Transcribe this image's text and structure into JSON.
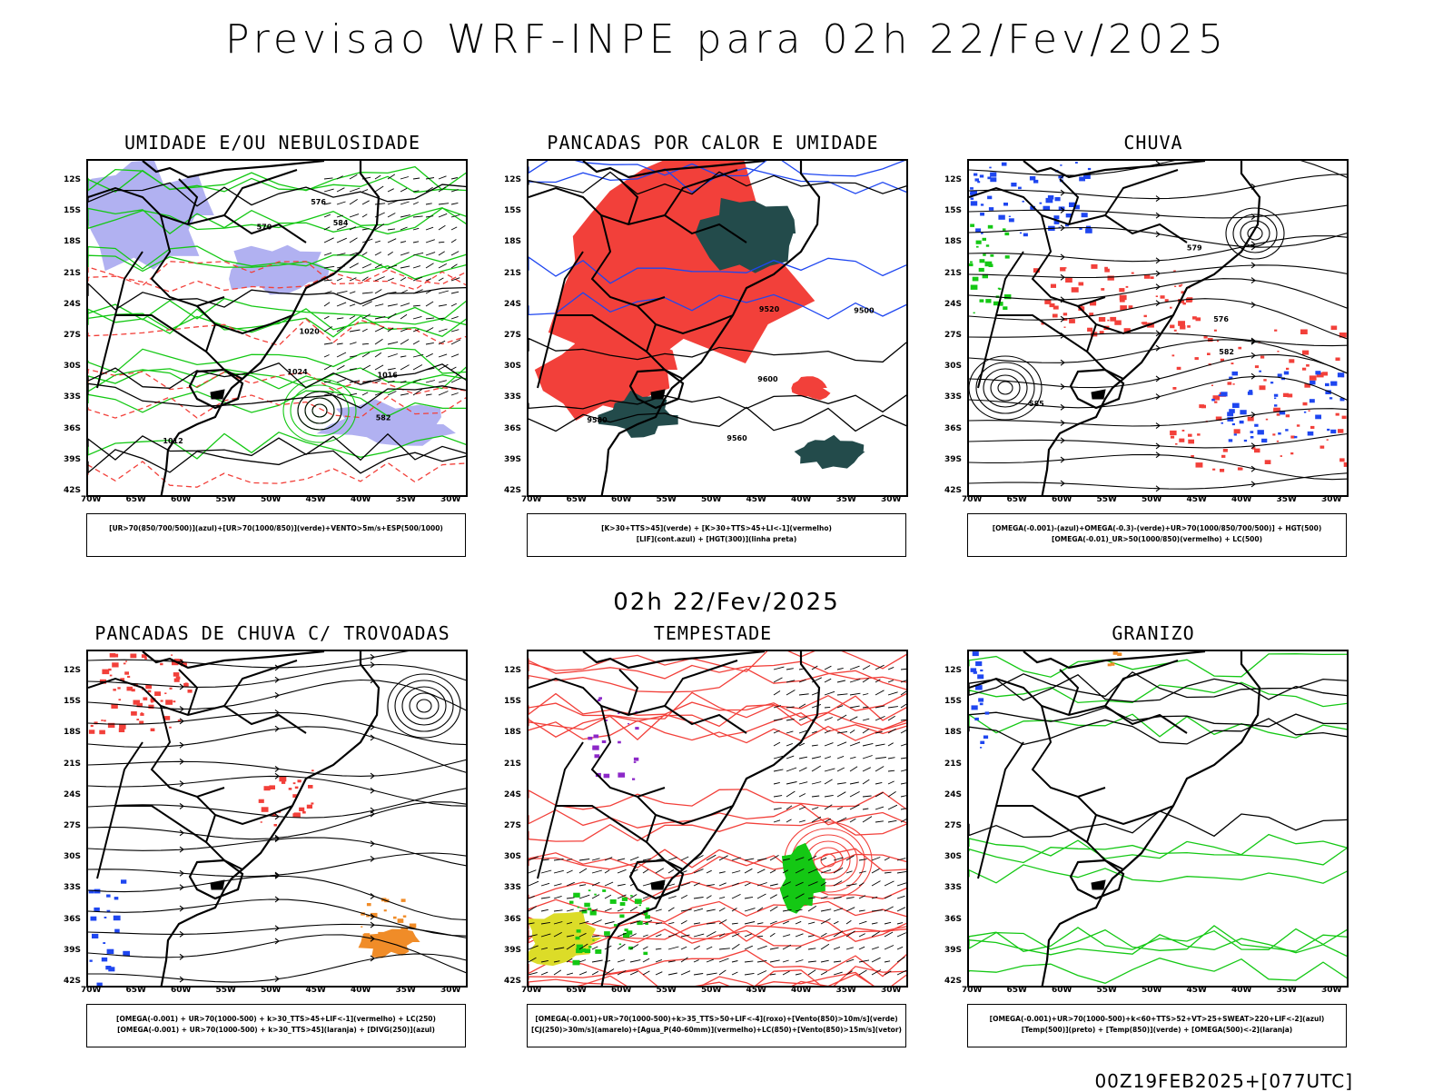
{
  "header": {
    "title": "Previsao WRF-INPE  para 02h 22/Fev/2025"
  },
  "time_label": "02h 22/Fev/2025",
  "footer": "00Z19FEB2025+[077UTC]",
  "axes": {
    "lat_ticks": [
      "12S",
      "15S",
      "18S",
      "21S",
      "24S",
      "27S",
      "30S",
      "33S",
      "36S",
      "39S",
      "42S"
    ],
    "lon_ticks": [
      "70W",
      "65W",
      "60W",
      "55W",
      "50W",
      "45W",
      "40W",
      "35W",
      "30W"
    ]
  },
  "colors": {
    "red": "#f2403a",
    "green": "#14c814",
    "blue": "#1e46f0",
    "darkteal": "#234b4b",
    "lavender": "#a9a9f0",
    "orange": "#f08c28",
    "yellow": "#dcdc28",
    "purple": "#8c28c8"
  },
  "panels": [
    {
      "title": "UMIDADE E/OU NEBULOSIDADE",
      "legend": [
        "[UR>70(850/700/500)](azul)+[UR>70(1000/850)](verde)+VENTO>5m/s+ESP(500/1000)"
      ],
      "contour_labels": [
        "1012",
        "1016",
        "1020",
        "1024",
        "570",
        "576",
        "582",
        "584"
      ]
    },
    {
      "title": "PANCADAS POR CALOR E UMIDADE",
      "legend": [
        "[K>30+TTS>45](verde) + [K>30+TTS>45+LI<-1](vermelho)",
        "[LIF](cont.azul) + [HGT(300)](linha preta)"
      ],
      "contour_labels": [
        "9600",
        "9580",
        "9560",
        "9520",
        "9500"
      ]
    },
    {
      "title": "CHUVA",
      "legend": [
        "[OMEGA(-0.001)-(azul)+OMEGA(-0.3)-(verde)+UR>70(1000/850/700/500)] + HGT(500)",
        "[OMEGA(-0.01)_UR>50(1000/850)(vermelho) + LC(500)"
      ],
      "contour_labels": [
        "585",
        "582",
        "579",
        "576"
      ]
    },
    {
      "title": "PANCADAS DE CHUVA C/ TROVOADAS",
      "legend": [
        "[OMEGA(-0.001) + UR>70(1000-500) + k>30_TTS>45+LIF<-1](vermelho) + LC(250)",
        "[OMEGA(-0.001) + UR>70(1000-500) + k>30_TTS>45](laranja) + [DIVG(250)](azul)"
      ],
      "contour_labels": []
    },
    {
      "title": "TEMPESTADE",
      "legend": [
        "[OMEGA(-0.001)+UR>70(1000-500)+k>35_TTS>50+LIF<-4](roxo)+[Vento(850)>10m/s](verde)",
        "[CJ(250)>30m/s](amarelo)+[Agua_P(40-60mm)](vermelho)+LC(850)+[Vento(850)>15m/s](vetor)"
      ],
      "contour_labels": []
    },
    {
      "title": "GRANIZO",
      "legend": [
        "[OMEGA(-0.001)+UR>70(1000-500)+k<60+TTS>52+VT>25+SWEAT>220+LIF<-2](azul)",
        "[Temp(500)](preto) + [Temp(850)](verde) + [OMEGA(500)<-2](laranja)"
      ],
      "contour_labels": []
    }
  ]
}
